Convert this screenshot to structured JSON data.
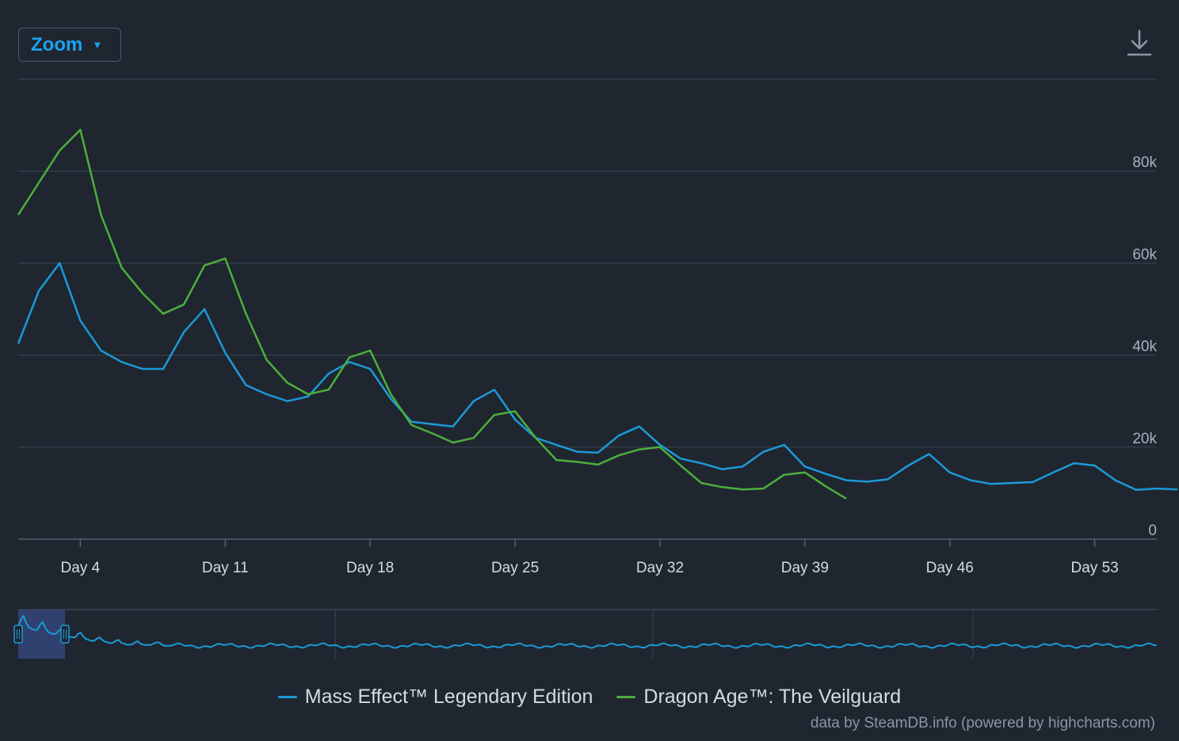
{
  "toolbar": {
    "zoom_label": "Zoom",
    "zoom_caret": "▼",
    "download_icon": "download-icon"
  },
  "credits": "data by SteamDB.info (powered by highcharts.com)",
  "colors": {
    "background": "#1f2630",
    "grid": "#3a4452",
    "axis_text": "#a8b1bc",
    "mass_effect": "#1b9ad6",
    "dragon_age": "#4caf3a"
  },
  "chart_data": {
    "type": "line",
    "title": "",
    "xlabel": "",
    "ylabel": "",
    "xlim": [
      1,
      56
    ],
    "ylim": [
      0,
      100000
    ],
    "x_ticks": [
      4,
      11,
      18,
      25,
      32,
      39,
      46,
      53
    ],
    "x_tick_labels": [
      "Day 4",
      "Day 11",
      "Day 18",
      "Day 25",
      "Day 32",
      "Day 39",
      "Day 46",
      "Day 53"
    ],
    "y_ticks": [
      0,
      20000,
      40000,
      60000,
      80000
    ],
    "y_tick_labels": [
      "0",
      "20k",
      "40k",
      "60k",
      "80k"
    ],
    "grid": true,
    "legend_position": "bottom-center",
    "series": [
      {
        "name": "Mass Effect™ Legendary Edition",
        "color": "#1b9ad6",
        "values": [
          42500,
          54000,
          60000,
          47500,
          41000,
          38500,
          37000,
          37000,
          45000,
          50000,
          40500,
          33500,
          31500,
          30000,
          31000,
          36000,
          38500,
          37000,
          30500,
          25500,
          25000,
          24500,
          30000,
          32500,
          26000,
          22000,
          20500,
          19000,
          18800,
          22500,
          24500,
          20500,
          17500,
          16500,
          15200,
          15800,
          19000,
          20500,
          15800,
          14200,
          12800,
          12500,
          13000,
          16000,
          18500,
          14500,
          12800,
          12000,
          12200,
          12400,
          14500,
          16500,
          16000,
          12800,
          10700,
          11000,
          10800
        ]
      },
      {
        "name": "Dragon Age™: The Veilguard",
        "color": "#4caf3a",
        "values": [
          70500,
          77500,
          84500,
          89000,
          70500,
          59000,
          53500,
          49000,
          51000,
          59500,
          61000,
          49000,
          39000,
          34000,
          31500,
          32500,
          39500,
          41000,
          31500,
          24800,
          23000,
          21000,
          22000,
          27000,
          27800,
          22000,
          17200,
          16800,
          16200,
          18200,
          19500,
          20000,
          16000,
          12200,
          11300,
          10800,
          11000,
          14000,
          14500,
          11500,
          8800
        ]
      }
    ]
  }
}
